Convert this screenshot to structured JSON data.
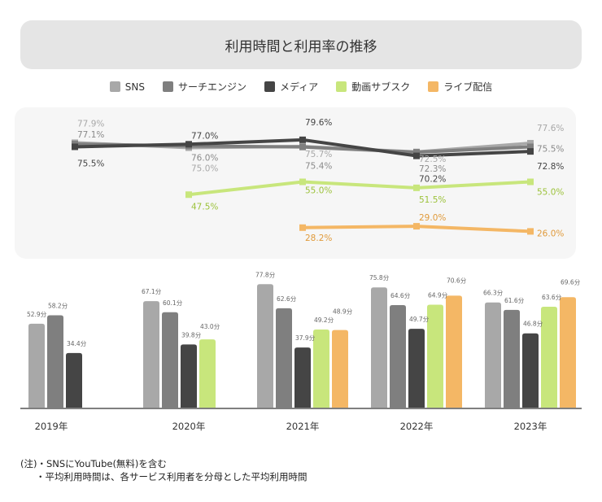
{
  "chart_data": [
    {
      "type": "line",
      "title": "利用時間と利用率の推移",
      "categories": [
        "2019年",
        "2020年",
        "2021年",
        "2022年",
        "2023年"
      ],
      "unit": "%",
      "series": [
        {
          "name": "SNS",
          "color": "#a8a8a8",
          "values": [
            77.9,
            75.0,
            75.7,
            72.5,
            77.6
          ],
          "labels": [
            "77.9%",
            "75.0%",
            "75.7%",
            "72.5%",
            "77.6%"
          ]
        },
        {
          "name": "サーチエンジン",
          "color": "#7f7f7f",
          "values": [
            77.1,
            76.0,
            75.4,
            72.3,
            75.5
          ],
          "labels": [
            "77.1%",
            "76.0%",
            "75.4%",
            "72.3%",
            "75.5%"
          ]
        },
        {
          "name": "メディア",
          "color": "#454545",
          "values": [
            75.5,
            77.0,
            79.6,
            70.2,
            72.8
          ],
          "labels": [
            "75.5%",
            "77.0%",
            "79.6%",
            "70.2%",
            "72.8%"
          ]
        },
        {
          "name": "動画サブスク",
          "color": "#c8e67c",
          "values": [
            null,
            47.5,
            55.0,
            51.5,
            55.0
          ],
          "labels": [
            null,
            "47.5%",
            "55.0%",
            "51.5%",
            "55.0%"
          ]
        },
        {
          "name": "ライブ配信",
          "color": "#f4b765",
          "values": [
            null,
            null,
            28.2,
            29.0,
            26.0
          ],
          "labels": [
            null,
            null,
            "28.2%",
            "29.0%",
            "26.0%"
          ]
        }
      ]
    },
    {
      "type": "bar",
      "categories": [
        "2019年",
        "2020年",
        "2021年",
        "2022年",
        "2023年"
      ],
      "unit": "分",
      "series": [
        {
          "name": "SNS",
          "color": "#a8a8a8",
          "values": [
            52.9,
            67.1,
            77.8,
            75.8,
            66.3
          ],
          "labels": [
            "52.9分",
            "67.1分",
            "77.8分",
            "75.8分",
            "66.3分"
          ]
        },
        {
          "name": "サーチエンジン",
          "color": "#7f7f7f",
          "values": [
            58.2,
            60.1,
            62.6,
            64.6,
            61.6
          ],
          "labels": [
            "58.2分",
            "60.1分",
            "62.6分",
            "64.6分",
            "61.6分"
          ]
        },
        {
          "name": "メディア",
          "color": "#454545",
          "values": [
            34.4,
            39.8,
            37.9,
            49.7,
            46.8
          ],
          "labels": [
            "34.4分",
            "39.8分",
            "37.9分",
            "49.7分",
            "46.8分"
          ]
        },
        {
          "name": "動画サブスク",
          "color": "#c8e67c",
          "values": [
            null,
            43.0,
            49.2,
            64.9,
            63.6
          ],
          "labels": [
            null,
            "43.0分",
            "49.2分",
            "64.9分",
            "63.6分"
          ]
        },
        {
          "name": "ライブ配信",
          "color": "#f4b765",
          "values": [
            null,
            null,
            48.9,
            70.6,
            69.6
          ],
          "labels": [
            null,
            null,
            "48.9分",
            "70.6分",
            "69.6分"
          ]
        }
      ]
    }
  ],
  "legend": [
    "SNS",
    "サーチエンジン",
    "メディア",
    "動画サブスク",
    "ライブ配信"
  ],
  "notes": [
    "(注)・SNSにYouTube(無料)を含む",
    "・平均利用時間は、各サービス利用者を分母とした平均利用時間"
  ]
}
